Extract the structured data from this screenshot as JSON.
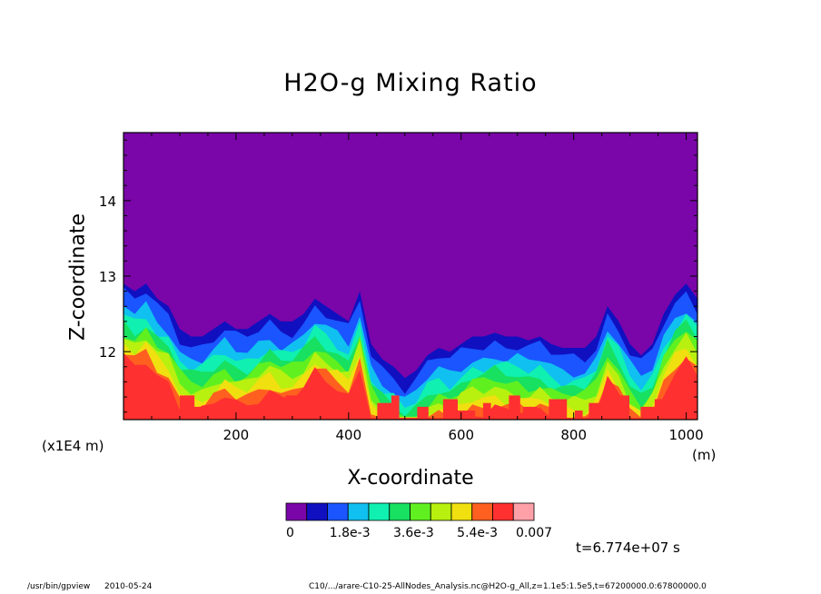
{
  "chart_data": {
    "type": "heatmap",
    "title": "H2O-g Mixing Ratio",
    "xlabel": "X-coordinate",
    "ylabel": "Z-coordinate",
    "x_units": "(m)",
    "y_scale_note": "(x1E4 m)",
    "xlim": [
      0,
      1020
    ],
    "ylim": [
      11.1,
      14.9
    ],
    "x_ticks": [
      200,
      400,
      600,
      800,
      1000
    ],
    "y_ticks": [
      12,
      13,
      14
    ],
    "x_tick_labels": [
      "200",
      "400",
      "600",
      "800",
      "1000"
    ],
    "y_tick_labels": [
      "12",
      "13",
      "14"
    ],
    "colorbar": {
      "colors": [
        "#7a05a8",
        "#1010c0",
        "#1a55ff",
        "#10c0f0",
        "#10f0b0",
        "#18e060",
        "#60f020",
        "#b8f010",
        "#f0e010",
        "#ff6020",
        "#ff3030",
        "#ffa0a8"
      ],
      "tick_labels": [
        "0",
        "1.8e-3",
        "3.6e-3",
        "5.4e-3",
        "0.007"
      ],
      "tick_values": [
        0,
        0.0018,
        0.0036,
        0.0054,
        0.007
      ],
      "vmin": 0,
      "vmax": 0.007
    },
    "moist_layer_top": {
      "x": [
        0,
        20,
        40,
        60,
        80,
        100,
        120,
        140,
        160,
        180,
        200,
        220,
        240,
        260,
        280,
        300,
        320,
        340,
        360,
        380,
        400,
        420,
        440,
        460,
        480,
        500,
        520,
        540,
        560,
        580,
        600,
        620,
        640,
        660,
        680,
        700,
        720,
        740,
        760,
        780,
        800,
        820,
        840,
        860,
        880,
        900,
        920,
        940,
        960,
        980,
        1000,
        1020
      ],
      "z": [
        12.9,
        12.8,
        12.9,
        12.7,
        12.6,
        12.3,
        12.2,
        12.2,
        12.3,
        12.4,
        12.3,
        12.3,
        12.4,
        12.5,
        12.4,
        12.4,
        12.5,
        12.7,
        12.6,
        12.5,
        12.4,
        12.8,
        12.1,
        11.9,
        11.8,
        11.65,
        11.75,
        11.95,
        12.05,
        12.0,
        12.1,
        12.2,
        12.2,
        12.25,
        12.2,
        12.2,
        12.15,
        12.2,
        12.1,
        12.05,
        12.05,
        12.05,
        12.2,
        12.6,
        12.4,
        12.1,
        11.95,
        12.1,
        12.5,
        12.75,
        12.9,
        12.7
      ]
    }
  },
  "annotations": {
    "time": "t=6.774e+07 s",
    "footer_left": "/usr/bin/gpview",
    "footer_date": "2010-05-24",
    "footer_right": "C10/.../arare-C10-25-AllNodes_Analysis.nc@H2O-g_All,z=1.1e5:1.5e5,t=67200000.0:67800000.0"
  }
}
